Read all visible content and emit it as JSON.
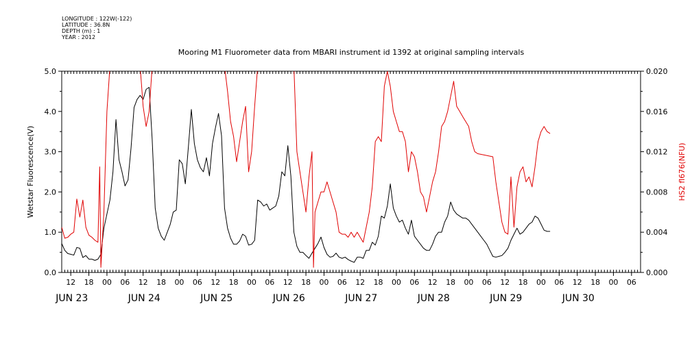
{
  "meta": {
    "longitude": "LONGITUDE : 122W(-122)",
    "latitude": "LATITUDE : 36.8N",
    "depth": "DEPTH (m) : 1",
    "year": "YEAR : 2012"
  },
  "chart_data": {
    "type": "line",
    "title": "Mooring M1 Fluorometer data from MBARI instrument id 1392 at original sampling intervals",
    "ylabel_left": "Wetstar Fluorescence(V)",
    "ylabel_right": "HS2 fl676(NFU)",
    "colors": {
      "left": "#000000",
      "right": "#e00000"
    },
    "x_unit": "hours since JUN 23 00:00 (2012)",
    "xlim": [
      9,
      201
    ],
    "ylim_left": [
      0,
      5
    ],
    "ylim_right": [
      0,
      0.02
    ],
    "yticks_left": [
      "0.0",
      "1.0",
      "2.0",
      "3.0",
      "4.0",
      "5.0"
    ],
    "yticks_right": [
      "0.000",
      "0.004",
      "0.008",
      "0.012",
      "0.016",
      "0.020"
    ],
    "hour_ticks": [
      {
        "t": 12,
        "label": "12"
      },
      {
        "t": 18,
        "label": "18"
      },
      {
        "t": 24,
        "label": "00"
      },
      {
        "t": 30,
        "label": "06"
      },
      {
        "t": 36,
        "label": "12"
      },
      {
        "t": 42,
        "label": "18"
      },
      {
        "t": 48,
        "label": "00"
      },
      {
        "t": 54,
        "label": "06"
      },
      {
        "t": 60,
        "label": "12"
      },
      {
        "t": 66,
        "label": "18"
      },
      {
        "t": 72,
        "label": "00"
      },
      {
        "t": 78,
        "label": "06"
      },
      {
        "t": 84,
        "label": "12"
      },
      {
        "t": 90,
        "label": "18"
      },
      {
        "t": 96,
        "label": "00"
      },
      {
        "t": 102,
        "label": "06"
      },
      {
        "t": 108,
        "label": "12"
      },
      {
        "t": 114,
        "label": "18"
      },
      {
        "t": 120,
        "label": "00"
      },
      {
        "t": 126,
        "label": "06"
      },
      {
        "t": 132,
        "label": "12"
      },
      {
        "t": 138,
        "label": "18"
      },
      {
        "t": 144,
        "label": "00"
      },
      {
        "t": 150,
        "label": "06"
      },
      {
        "t": 156,
        "label": "12"
      },
      {
        "t": 162,
        "label": "18"
      },
      {
        "t": 168,
        "label": "00"
      },
      {
        "t": 174,
        "label": "06"
      },
      {
        "t": 180,
        "label": "12"
      },
      {
        "t": 186,
        "label": "18"
      },
      {
        "t": 192,
        "label": "00"
      },
      {
        "t": 198,
        "label": "06"
      }
    ],
    "day_labels": [
      {
        "t": 7,
        "label": "JUN 23"
      },
      {
        "t": 31,
        "label": "JUN 24"
      },
      {
        "t": 55,
        "label": "JUN 25"
      },
      {
        "t": 79,
        "label": "JUN 26"
      },
      {
        "t": 103,
        "label": "JUN 27"
      },
      {
        "t": 127,
        "label": "JUN 28"
      },
      {
        "t": 151,
        "label": "JUN 29"
      },
      {
        "t": 175,
        "label": "JUN 30"
      }
    ],
    "series": [
      {
        "axis": "left",
        "points": [
          [
            9,
            0.72
          ],
          [
            10,
            0.55
          ],
          [
            11,
            0.47
          ],
          [
            12,
            0.45
          ],
          [
            13,
            0.43
          ],
          [
            14,
            0.62
          ],
          [
            15,
            0.6
          ],
          [
            16,
            0.37
          ],
          [
            17,
            0.42
          ],
          [
            18,
            0.33
          ],
          [
            19,
            0.33
          ],
          [
            20,
            0.3
          ],
          [
            21,
            0.33
          ],
          [
            22,
            0.45
          ],
          [
            23,
            1.1
          ],
          [
            24,
            1.45
          ],
          [
            25,
            1.8
          ],
          [
            26,
            2.5
          ],
          [
            27,
            3.8
          ],
          [
            28,
            2.8
          ],
          [
            29,
            2.5
          ],
          [
            30,
            2.15
          ],
          [
            31,
            2.3
          ],
          [
            32,
            3.1
          ],
          [
            33,
            4.1
          ],
          [
            34,
            4.3
          ],
          [
            35,
            4.4
          ],
          [
            36,
            4.3
          ],
          [
            37,
            4.55
          ],
          [
            38,
            4.6
          ],
          [
            39,
            3.3
          ],
          [
            40,
            1.6
          ],
          [
            41,
            1.1
          ],
          [
            42,
            0.9
          ],
          [
            43,
            0.8
          ],
          [
            44,
            1.0
          ],
          [
            45,
            1.2
          ],
          [
            46,
            1.5
          ],
          [
            47,
            1.55
          ],
          [
            48,
            2.8
          ],
          [
            49,
            2.7
          ],
          [
            50,
            2.2
          ],
          [
            51,
            3.1
          ],
          [
            52,
            4.05
          ],
          [
            53,
            3.2
          ],
          [
            54,
            2.8
          ],
          [
            55,
            2.6
          ],
          [
            56,
            2.5
          ],
          [
            57,
            2.85
          ],
          [
            58,
            2.4
          ],
          [
            59,
            3.2
          ],
          [
            60,
            3.6
          ],
          [
            61,
            3.95
          ],
          [
            62,
            3.4
          ],
          [
            63,
            1.6
          ],
          [
            64,
            1.1
          ],
          [
            65,
            0.85
          ],
          [
            66,
            0.7
          ],
          [
            67,
            0.7
          ],
          [
            68,
            0.78
          ],
          [
            69,
            0.95
          ],
          [
            70,
            0.9
          ],
          [
            71,
            0.68
          ],
          [
            72,
            0.7
          ],
          [
            73,
            0.8
          ],
          [
            74,
            1.8
          ],
          [
            75,
            1.75
          ],
          [
            76,
            1.65
          ],
          [
            77,
            1.7
          ],
          [
            78,
            1.55
          ],
          [
            79,
            1.6
          ],
          [
            80,
            1.65
          ],
          [
            81,
            1.9
          ],
          [
            82,
            2.5
          ],
          [
            83,
            2.4
          ],
          [
            84,
            3.15
          ],
          [
            85,
            2.4
          ],
          [
            86,
            1.0
          ],
          [
            87,
            0.65
          ],
          [
            88,
            0.5
          ],
          [
            89,
            0.5
          ],
          [
            90,
            0.42
          ],
          [
            91,
            0.35
          ],
          [
            92,
            0.48
          ],
          [
            93,
            0.6
          ],
          [
            94,
            0.72
          ],
          [
            95,
            0.88
          ],
          [
            96,
            0.62
          ],
          [
            97,
            0.45
          ],
          [
            98,
            0.38
          ],
          [
            99,
            0.4
          ],
          [
            100,
            0.48
          ],
          [
            101,
            0.38
          ],
          [
            102,
            0.35
          ],
          [
            103,
            0.38
          ],
          [
            104,
            0.32
          ],
          [
            105,
            0.28
          ],
          [
            106,
            0.25
          ],
          [
            107,
            0.38
          ],
          [
            108,
            0.38
          ],
          [
            109,
            0.35
          ],
          [
            110,
            0.55
          ],
          [
            111,
            0.55
          ],
          [
            112,
            0.75
          ],
          [
            113,
            0.68
          ],
          [
            114,
            0.9
          ],
          [
            115,
            1.4
          ],
          [
            116,
            1.35
          ],
          [
            117,
            1.65
          ],
          [
            118,
            2.2
          ],
          [
            119,
            1.6
          ],
          [
            120,
            1.4
          ],
          [
            121,
            1.25
          ],
          [
            122,
            1.3
          ],
          [
            123,
            1.1
          ],
          [
            124,
            0.95
          ],
          [
            125,
            1.3
          ],
          [
            126,
            0.9
          ],
          [
            127,
            0.8
          ],
          [
            128,
            0.7
          ],
          [
            129,
            0.6
          ],
          [
            130,
            0.55
          ],
          [
            131,
            0.55
          ],
          [
            132,
            0.7
          ],
          [
            133,
            0.9
          ],
          [
            134,
            1.0
          ],
          [
            135,
            1.0
          ],
          [
            136,
            1.25
          ],
          [
            137,
            1.4
          ],
          [
            138,
            1.75
          ],
          [
            139,
            1.55
          ],
          [
            140,
            1.45
          ],
          [
            141,
            1.4
          ],
          [
            142,
            1.35
          ],
          [
            143,
            1.35
          ],
          [
            144,
            1.3
          ],
          [
            145,
            1.2
          ],
          [
            146,
            1.1
          ],
          [
            147,
            1.0
          ],
          [
            148,
            0.9
          ],
          [
            149,
            0.8
          ],
          [
            150,
            0.7
          ],
          [
            151,
            0.55
          ],
          [
            152,
            0.4
          ],
          [
            153,
            0.38
          ],
          [
            154,
            0.4
          ],
          [
            155,
            0.42
          ],
          [
            156,
            0.5
          ],
          [
            157,
            0.6
          ],
          [
            158,
            0.8
          ],
          [
            159,
            0.95
          ],
          [
            160,
            1.1
          ],
          [
            161,
            0.95
          ],
          [
            162,
            1.0
          ],
          [
            163,
            1.1
          ],
          [
            164,
            1.2
          ],
          [
            165,
            1.25
          ],
          [
            166,
            1.4
          ],
          [
            167,
            1.35
          ],
          [
            168,
            1.2
          ],
          [
            169,
            1.05
          ],
          [
            170,
            1.02
          ],
          [
            171,
            1.02
          ]
        ]
      },
      {
        "axis": "right",
        "points": [
          [
            9,
            0.0045
          ],
          [
            10,
            0.0034
          ],
          [
            11,
            0.0035
          ],
          [
            12,
            0.0038
          ],
          [
            13,
            0.004
          ],
          [
            14,
            0.0073
          ],
          [
            15,
            0.0055
          ],
          [
            16,
            0.0072
          ],
          [
            17,
            0.0045
          ],
          [
            18,
            0.0037
          ],
          [
            19,
            0.0035
          ],
          [
            20,
            0.0032
          ],
          [
            21,
            0.003
          ],
          [
            21.6,
            0.0105
          ],
          [
            22,
            0.0005
          ],
          [
            23,
            0.006
          ],
          [
            24,
            0.016
          ],
          [
            25,
            0.0205
          ],
          [
            26,
            0.0205
          ],
          [
            35,
            0.0205
          ],
          [
            36,
            0.0165
          ],
          [
            37,
            0.0145
          ],
          [
            38,
            0.016
          ],
          [
            39,
            0.0205
          ],
          [
            63,
            0.0205
          ],
          [
            64,
            0.018
          ],
          [
            65,
            0.015
          ],
          [
            66,
            0.0135
          ],
          [
            67,
            0.011
          ],
          [
            68,
            0.013
          ],
          [
            69,
            0.015
          ],
          [
            70,
            0.0165
          ],
          [
            71,
            0.01
          ],
          [
            72,
            0.012
          ],
          [
            73,
            0.0165
          ],
          [
            74,
            0.0205
          ],
          [
            86,
            0.0205
          ],
          [
            87,
            0.012
          ],
          [
            88,
            0.01
          ],
          [
            89,
            0.008
          ],
          [
            90,
            0.006
          ],
          [
            91,
            0.0095
          ],
          [
            92,
            0.012
          ],
          [
            92.5,
            0.0005
          ],
          [
            93,
            0.006
          ],
          [
            94,
            0.007
          ],
          [
            95,
            0.008
          ],
          [
            96,
            0.008
          ],
          [
            97,
            0.009
          ],
          [
            98,
            0.008
          ],
          [
            99,
            0.007
          ],
          [
            100,
            0.006
          ],
          [
            101,
            0.004
          ],
          [
            102,
            0.0038
          ],
          [
            103,
            0.0038
          ],
          [
            104,
            0.0035
          ],
          [
            105,
            0.004
          ],
          [
            106,
            0.0035
          ],
          [
            107,
            0.004
          ],
          [
            108,
            0.0035
          ],
          [
            109,
            0.003
          ],
          [
            110,
            0.0045
          ],
          [
            111,
            0.006
          ],
          [
            112,
            0.0085
          ],
          [
            113,
            0.013
          ],
          [
            114,
            0.0135
          ],
          [
            115,
            0.013
          ],
          [
            116,
            0.0185
          ],
          [
            117,
            0.02
          ],
          [
            118,
            0.0185
          ],
          [
            119,
            0.016
          ],
          [
            120,
            0.015
          ],
          [
            121,
            0.014
          ],
          [
            122,
            0.014
          ],
          [
            123,
            0.013
          ],
          [
            124,
            0.01
          ],
          [
            125,
            0.012
          ],
          [
            126,
            0.0115
          ],
          [
            127,
            0.01
          ],
          [
            128,
            0.008
          ],
          [
            129,
            0.0075
          ],
          [
            130,
            0.006
          ],
          [
            131,
            0.0075
          ],
          [
            132,
            0.009
          ],
          [
            133,
            0.01
          ],
          [
            134,
            0.012
          ],
          [
            135,
            0.0145
          ],
          [
            136,
            0.015
          ],
          [
            137,
            0.016
          ],
          [
            138,
            0.0175
          ],
          [
            139,
            0.019
          ],
          [
            140,
            0.0165
          ],
          [
            141,
            0.016
          ],
          [
            142,
            0.0155
          ],
          [
            143,
            0.015
          ],
          [
            144,
            0.0145
          ],
          [
            145,
            0.013
          ],
          [
            146,
            0.012
          ],
          [
            147,
            0.0118
          ],
          [
            152,
            0.0115
          ],
          [
            153,
            0.009
          ],
          [
            154,
            0.007
          ],
          [
            155,
            0.005
          ],
          [
            156,
            0.004
          ],
          [
            157,
            0.0038
          ],
          [
            158,
            0.0095
          ],
          [
            159,
            0.0045
          ],
          [
            160,
            0.0085
          ],
          [
            161,
            0.01
          ],
          [
            162,
            0.0105
          ],
          [
            163,
            0.009
          ],
          [
            164,
            0.0095
          ],
          [
            165,
            0.0085
          ],
          [
            166,
            0.0105
          ],
          [
            167,
            0.013
          ],
          [
            168,
            0.014
          ],
          [
            169,
            0.0145
          ],
          [
            170,
            0.014
          ],
          [
            171,
            0.0138
          ]
        ]
      }
    ]
  }
}
